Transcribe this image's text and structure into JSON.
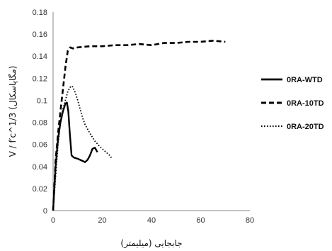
{
  "chart_data": {
    "type": "line",
    "xlabel": "جابجایی (میلیمتر)",
    "ylabel": "V / f′c^1/3 (مگاپاسکال)",
    "xlim": [
      0,
      80
    ],
    "ylim": [
      0,
      0.18
    ],
    "x_ticks": [
      "0",
      "20",
      "40",
      "60",
      "80"
    ],
    "y_ticks": [
      "0",
      "0.02",
      "0.04",
      "0.06",
      "0.08",
      "0.1",
      "0.12",
      "0.14",
      "0.16",
      "0.18"
    ],
    "grid": false,
    "legend_position": "right",
    "series": [
      {
        "name": "0RA-WTD",
        "style": "solid",
        "color": "#000000",
        "x": [
          0,
          1,
          2,
          3,
          4,
          5,
          5.6,
          6.2,
          6.8,
          7.5,
          8.5,
          10,
          12,
          13,
          14,
          15,
          16,
          17,
          18
        ],
        "y": [
          0,
          0.04,
          0.065,
          0.08,
          0.09,
          0.097,
          0.098,
          0.09,
          0.07,
          0.05,
          0.048,
          0.047,
          0.045,
          0.044,
          0.046,
          0.05,
          0.056,
          0.057,
          0.053
        ]
      },
      {
        "name": "0RA-10TD",
        "style": "dashed",
        "color": "#000000",
        "x": [
          0,
          1,
          2,
          3,
          4,
          5,
          6,
          7,
          8,
          10,
          15,
          20,
          25,
          30,
          35,
          40,
          45,
          50,
          55,
          60,
          65,
          70
        ],
        "y": [
          0,
          0.045,
          0.07,
          0.09,
          0.11,
          0.13,
          0.145,
          0.148,
          0.147,
          0.148,
          0.149,
          0.149,
          0.15,
          0.15,
          0.151,
          0.15,
          0.152,
          0.152,
          0.153,
          0.153,
          0.154,
          0.153
        ]
      },
      {
        "name": "0RA-20TD",
        "style": "dotted",
        "color": "#000000",
        "x": [
          0,
          1,
          2,
          3,
          4,
          5,
          6,
          7,
          7.5,
          8,
          9,
          10,
          11,
          12,
          13,
          15,
          17,
          19,
          21,
          23,
          24
        ],
        "y": [
          0,
          0.03,
          0.06,
          0.08,
          0.092,
          0.1,
          0.108,
          0.112,
          0.113,
          0.112,
          0.107,
          0.1,
          0.092,
          0.084,
          0.078,
          0.07,
          0.063,
          0.058,
          0.054,
          0.05,
          0.047
        ]
      }
    ]
  }
}
